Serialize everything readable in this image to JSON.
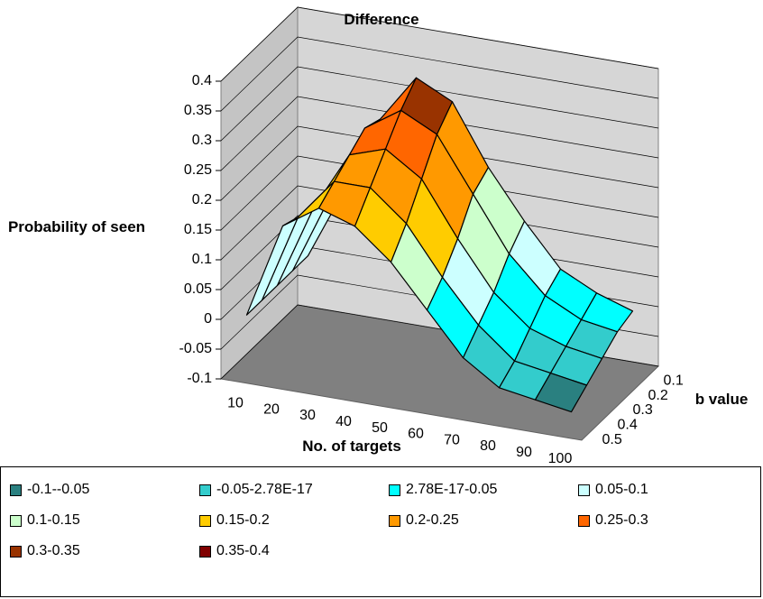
{
  "chart_data": {
    "type": "surface3d",
    "title": "Difference",
    "zlabel": "Probability of seen",
    "xlabel": "No. of targets",
    "ylabel": "b value",
    "categories": [
      "10",
      "20",
      "30",
      "40",
      "50",
      "60",
      "70",
      "80",
      "90",
      "100"
    ],
    "series": [
      {
        "name": "0.1",
        "values": [
          0.0,
          0.12,
          0.25,
          0.33,
          0.3,
          0.2,
          0.12,
          0.05,
          0.02,
          0.0
        ]
      },
      {
        "name": "0.2",
        "values": [
          0.0,
          0.13,
          0.26,
          0.3,
          0.27,
          0.18,
          0.09,
          0.03,
          0.0,
          -0.01
        ]
      },
      {
        "name": "0.3",
        "values": [
          0.0,
          0.14,
          0.24,
          0.26,
          0.22,
          0.13,
          0.05,
          0.0,
          -0.02,
          -0.03
        ]
      },
      {
        "name": "0.4",
        "values": [
          0.0,
          0.15,
          0.22,
          0.22,
          0.17,
          0.09,
          0.02,
          -0.03,
          -0.04,
          -0.05
        ]
      },
      {
        "name": "0.5",
        "values": [
          0.0,
          0.16,
          0.2,
          0.18,
          0.13,
          0.06,
          -0.01,
          -0.05,
          -0.06,
          -0.07
        ]
      }
    ],
    "zlim": [
      -0.1,
      0.4
    ],
    "zticks": [
      -0.1,
      -0.05,
      0,
      0.05,
      0.1,
      0.15,
      0.2,
      0.25,
      0.3,
      0.35,
      0.4
    ],
    "legend": [
      {
        "label": "-0.1--0.05",
        "color": "#2a8080"
      },
      {
        "label": "-0.05-2.78E-17",
        "color": "#33cccc"
      },
      {
        "label": "2.78E-17-0.05",
        "color": "#00ffff"
      },
      {
        "label": "0.05-0.1",
        "color": "#ccffff"
      },
      {
        "label": "0.1-0.15",
        "color": "#ccffcc"
      },
      {
        "label": "0.15-0.2",
        "color": "#ffcc00"
      },
      {
        "label": "0.2-0.25",
        "color": "#ff9900"
      },
      {
        "label": "0.25-0.3",
        "color": "#ff6600"
      },
      {
        "label": "0.3-0.35",
        "color": "#993300"
      },
      {
        "label": "0.35-0.4",
        "color": "#800000"
      }
    ]
  }
}
